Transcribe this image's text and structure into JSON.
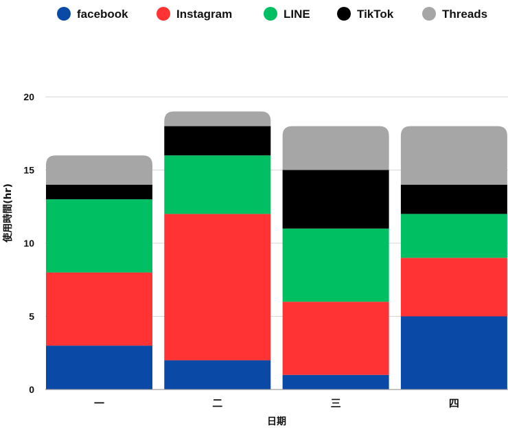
{
  "chart_data": {
    "type": "bar",
    "stacked": true,
    "categories": [
      "一",
      "二",
      "三",
      "四"
    ],
    "series": [
      {
        "name": "facebook",
        "color": "#0A4AA6",
        "values": [
          3,
          2,
          1,
          5
        ]
      },
      {
        "name": "Instagram",
        "color": "#FF3333",
        "values": [
          5,
          10,
          5,
          4
        ]
      },
      {
        "name": "LINE",
        "color": "#00BF63",
        "values": [
          5,
          4,
          5,
          3
        ]
      },
      {
        "name": "TikTok",
        "color": "#000000",
        "values": [
          1,
          2,
          4,
          2
        ]
      },
      {
        "name": "Threads",
        "color": "#A6A6A6",
        "values": [
          2,
          1,
          3,
          4
        ]
      }
    ],
    "xlabel": "日期",
    "ylabel": "使用時間(hr)",
    "ylim": [
      0,
      20
    ],
    "yticks": [
      0,
      5,
      10,
      15,
      20
    ],
    "grid": true,
    "legend": "top"
  }
}
